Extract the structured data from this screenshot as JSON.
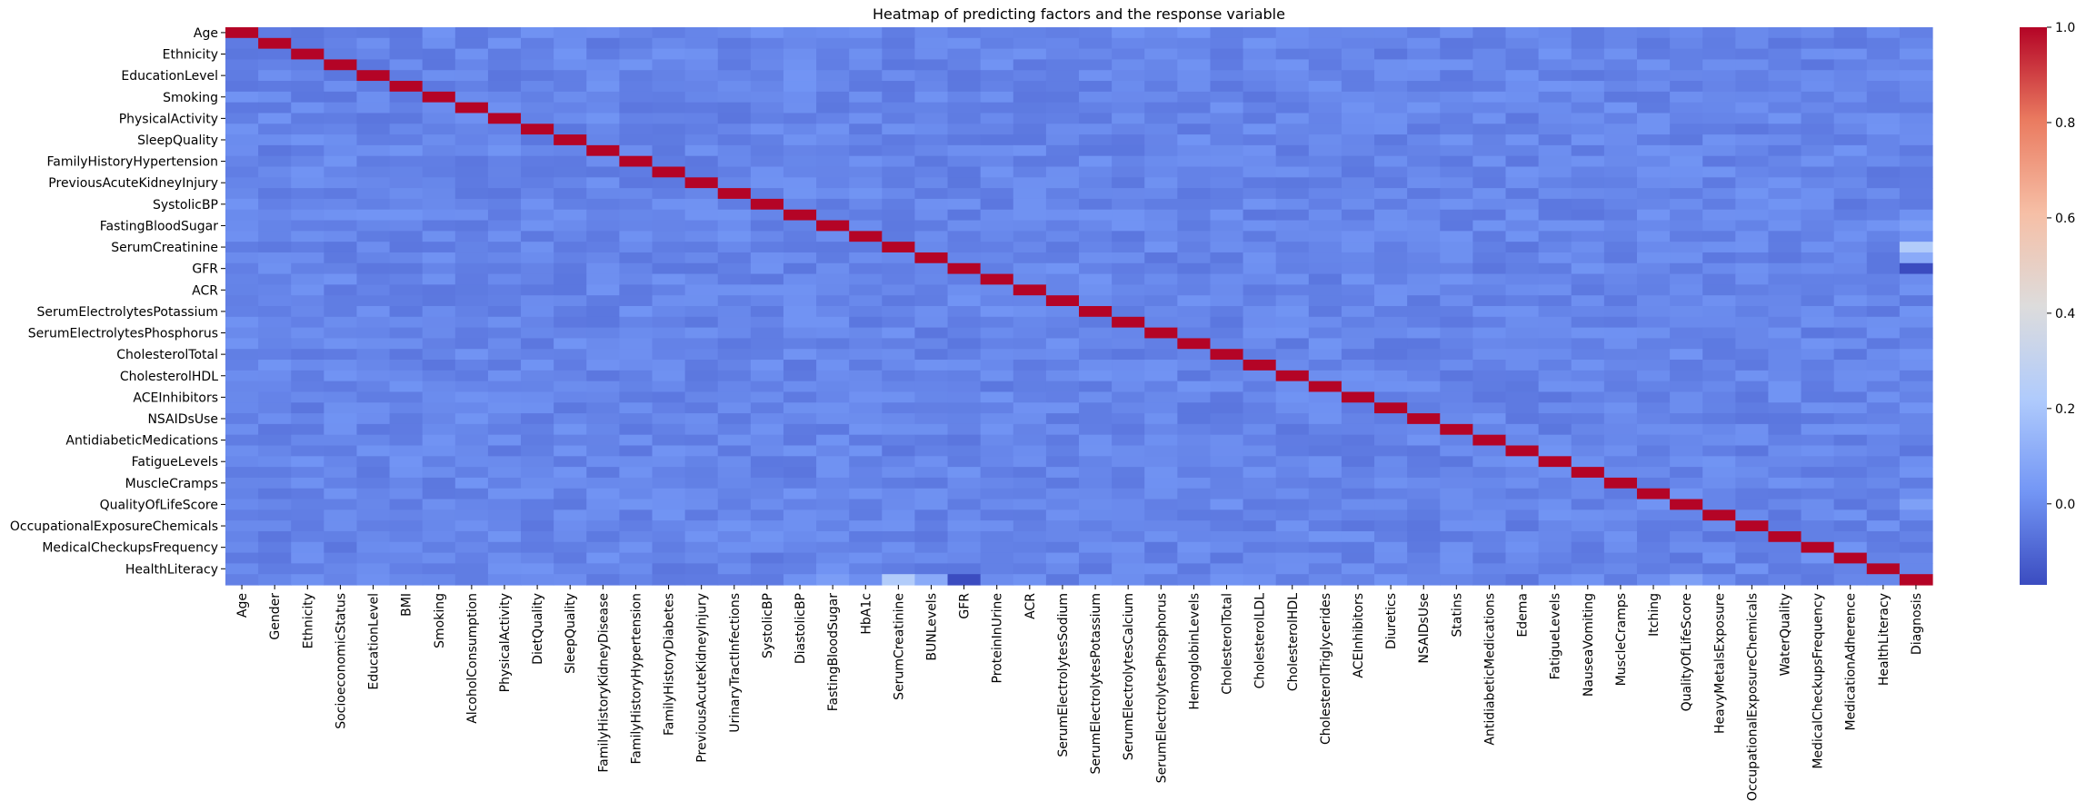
{
  "chart_data": {
    "type": "heatmap",
    "title": "Heatmap of predicting factors and the response variable",
    "xlabel": "",
    "ylabel": "",
    "colormap": "coolwarm",
    "colormap_stops": [
      "#3b4cc0",
      "#7396f5",
      "#b0cbfc",
      "#dddcdc",
      "#f6bfa6",
      "#ea7b60",
      "#b40426"
    ],
    "vmin": -0.17,
    "vmax": 1.0,
    "baseline_value": -0.02,
    "variables": [
      "Age",
      "Gender",
      "Ethnicity",
      "SocioeconomicStatus",
      "EducationLevel",
      "BMI",
      "Smoking",
      "AlcoholConsumption",
      "PhysicalActivity",
      "DietQuality",
      "SleepQuality",
      "FamilyHistoryKidneyDisease",
      "FamilyHistoryHypertension",
      "FamilyHistoryDiabetes",
      "PreviousAcuteKidneyInjury",
      "UrinaryTractInfections",
      "SystolicBP",
      "DiastolicBP",
      "FastingBloodSugar",
      "HbA1c",
      "SerumCreatinine",
      "BUNLevels",
      "GFR",
      "ProteinInUrine",
      "ACR",
      "SerumElectrolytesSodium",
      "SerumElectrolytesPotassium",
      "SerumElectrolytesCalcium",
      "SerumElectrolytesPhosphorus",
      "HemoglobinLevels",
      "CholesterolTotal",
      "CholesterolLDL",
      "CholesterolHDL",
      "CholesterolTriglycerides",
      "ACEInhibitors",
      "Diuretics",
      "NSAIDsUse",
      "Statins",
      "AntidiabeticMedications",
      "Edema",
      "FatigueLevels",
      "NauseaVomiting",
      "MuscleCramps",
      "Itching",
      "QualityOfLifeScore",
      "HeavyMetalsExposure",
      "OccupationalExposureChemicals",
      "WaterQuality",
      "MedicalCheckupsFrequency",
      "MedicationAdherence",
      "HealthLiteracy",
      "Diagnosis"
    ],
    "y_tick_labels_shown": [
      "Age",
      "Ethnicity",
      "EducationLevel",
      "Smoking",
      "PhysicalActivity",
      "SleepQuality",
      "FamilyHistoryHypertension",
      "PreviousAcuteKidneyInjury",
      "SystolicBP",
      "FastingBloodSugar",
      "SerumCreatinine",
      "GFR",
      "ACR",
      "SerumElectrolytesPotassium",
      "SerumElectrolytesPhosphorus",
      "CholesterolTotal",
      "CholesterolHDL",
      "ACEInhibitors",
      "NSAIDsUse",
      "AntidiabeticMedications",
      "FatigueLevels",
      "MuscleCramps",
      "QualityOfLifeScore",
      "OccupationalExposureChemicals",
      "MedicalCheckupsFrequency",
      "HealthLiteracy"
    ],
    "notable_values": [
      {
        "x": "SerumCreatinine",
        "y": "Diagnosis",
        "value": 0.23
      },
      {
        "x": "Diagnosis",
        "y": "SerumCreatinine",
        "value": 0.23
      },
      {
        "x": "BUNLevels",
        "y": "Diagnosis",
        "value": 0.1
      },
      {
        "x": "Diagnosis",
        "y": "BUNLevels",
        "value": 0.1
      },
      {
        "x": "GFR",
        "y": "Diagnosis",
        "value": -0.17
      },
      {
        "x": "Diagnosis",
        "y": "GFR",
        "value": -0.17
      },
      {
        "x": "FastingBloodSugar",
        "y": "Diagnosis",
        "value": 0.05
      },
      {
        "x": "Diagnosis",
        "y": "FastingBloodSugar",
        "value": 0.05
      },
      {
        "x": "QualityOfLifeScore",
        "y": "Diagnosis",
        "value": 0.06
      },
      {
        "x": "Diagnosis",
        "y": "QualityOfLifeScore",
        "value": 0.06
      }
    ],
    "colorbar": {
      "ticks": [
        0.0,
        0.2,
        0.4,
        0.6,
        0.8,
        1.0
      ],
      "tick_labels": [
        "0.0",
        "0.2",
        "0.4",
        "0.6",
        "0.8",
        "1.0"
      ]
    },
    "grid": false,
    "legend": "colorbar-right"
  }
}
